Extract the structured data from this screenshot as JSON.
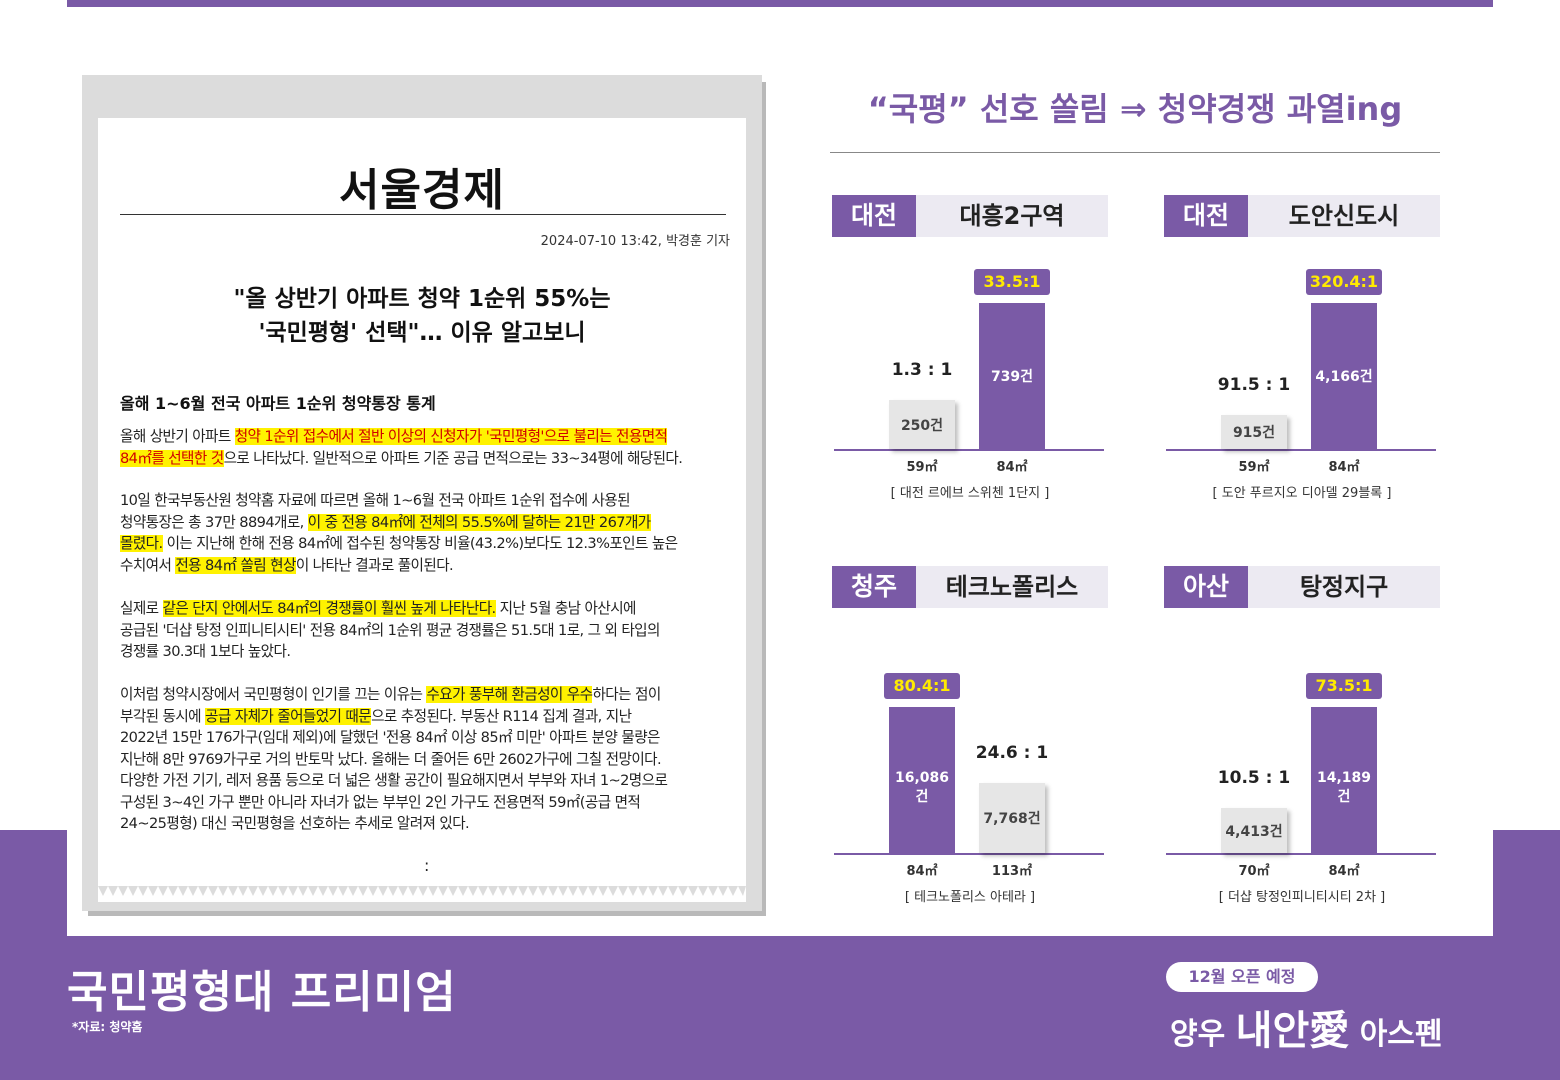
{
  "newspaper": {
    "name": "서울경제",
    "dateline": "2024-07-10 13:42, 박경훈 기자",
    "headline_1": "\"올 상반기 아파트 청약 1순위 55%는",
    "headline_2": "'국민평형' 선택\"… 이유 알고보니",
    "subheading": "올해 1~6월 전국 아파트 1순위 청약통장 통계",
    "p1": {
      "a": "올해 상반기 아파트 ",
      "b": "청약 1순위 접수에서 절반 이상의 신청자가 '국민평형'으로 불리는 전용면적",
      "c": "84㎡를 선택한 것",
      "d": "으로 나타났다. 일반적으로 아파트 기준 공급 면적으로는 33~34평에 해당된다."
    },
    "p2": {
      "a": "10일 한국부동산원 청약홈 자료에 따르면 올해 1~6월 전국 아파트 1순위 접수에 사용된",
      "b": "청약통장은 총 37만 8894개로, ",
      "c": "이 중 전용 84㎡에 전체의 55.5%에 달하는 21만 267개가",
      "d": "몰렸다.",
      "e": " 이는 지난해 한해 전용 84㎡에 접수된 청약통장 비율(43.2%)보다도 12.3%포인트 높은",
      "f": "수치여서 ",
      "g": "전용 84㎡ 쏠림 현상",
      "h": "이 나타난 결과로 풀이된다."
    },
    "p3": {
      "a": "실제로 ",
      "b": "같은 단지 안에서도 84㎡의 경쟁률이 훨씬 높게 나타난다.",
      "c": " 지난 5월 충남 아산시에",
      "d": "공급된 '더샵 탕정 인피니티시티' 전용 84㎡의 1순위 평균 경쟁률은 51.5대 1로, 그 외 타입의",
      "e": "경쟁률 30.3대 1보다 높았다."
    },
    "p4": {
      "a": "이처럼 청약시장에서 국민평형이 인기를 끄는 이유는 ",
      "b": "수요가 풍부해 환금성이 우수",
      "c": "하다는 점이",
      "d": "부각된 동시에 ",
      "e": "공급 자체가 줄어들었기 때문",
      "f": "으로 추정된다. 부동산 R114 집계 결과, 지난",
      "g": "2022년 15만 176가구(임대 제외)에 달했던 '전용 84㎡ 이상 85㎡ 미만' 아파트 분양 물량은",
      "h": "지난해 8만 9769가구로 거의 반토막 났다. 올해는 더 줄어든 6만 2602가구에 그칠 전망이다.",
      "i": "다양한 가전 기기, 레저 용품 등으로 더 넓은 생활 공간이 필요해지면서 부부와 자녀 1~2명으로",
      "j": "구성된 3~4인 가구 뿐만 아니라 자녀가 없는 부부인 2인 가구도 전용면적 59㎡(공급 면적",
      "k": "24~25평형) 대신 국민평형을 선호하는 추세로 알려져 있다."
    },
    "ellipsis": ":"
  },
  "main_title": "“국평” 선호 쏠림 ⇒ 청약경쟁 과열ing",
  "chart_data": [
    {
      "type": "bar",
      "region": "대전",
      "district": "대흥2구역",
      "categories": [
        "59㎡",
        "84㎡"
      ],
      "values": [
        250,
        739
      ],
      "value_labels": [
        "250건",
        "739건"
      ],
      "ratios": [
        "1.3 : 1",
        "33.5:1"
      ],
      "highlight_index": 1,
      "caption": "[ 대전 르에브 스위첸 1단지 ]"
    },
    {
      "type": "bar",
      "region": "대전",
      "district": "도안신도시",
      "categories": [
        "59㎡",
        "84㎡"
      ],
      "values": [
        915,
        4166
      ],
      "value_labels": [
        "915건",
        "4,166건"
      ],
      "ratios": [
        "91.5 : 1",
        "320.4:1"
      ],
      "highlight_index": 1,
      "caption": "[ 도안 푸르지오 디아델 29블록 ]"
    },
    {
      "type": "bar",
      "region": "청주",
      "district": "테크노폴리스",
      "categories": [
        "84㎡",
        "113㎡"
      ],
      "values": [
        16086,
        7768
      ],
      "value_labels": [
        "16,086건",
        "7,768건"
      ],
      "ratios": [
        "80.4:1",
        "24.6 : 1"
      ],
      "highlight_index": 0,
      "caption": "[ 테크노폴리스 아테라 ]"
    },
    {
      "type": "bar",
      "region": "아산",
      "district": "탕정지구",
      "categories": [
        "70㎡",
        "84㎡"
      ],
      "values": [
        4413,
        14189
      ],
      "value_labels": [
        "4,413건",
        "14,189건"
      ],
      "ratios": [
        "10.5 : 1",
        "73.5:1"
      ],
      "highlight_index": 1,
      "caption": "[ 더샵 탕정인피니티시티 2차 ]"
    }
  ],
  "footer": {
    "title": "국민평형대 프리미엄",
    "source": "*자료: 청약홈",
    "badge": "12월 오픈 예정",
    "brand_a": "양우 ",
    "brand_b": "내안愛",
    "brand_c": " 아스펜"
  },
  "colors": {
    "brand_purple": "#7a5aa6",
    "ratio_yellow": "#ffea00",
    "highlight_yellow": "#fff200",
    "highlight_red_text": "#d00000"
  }
}
